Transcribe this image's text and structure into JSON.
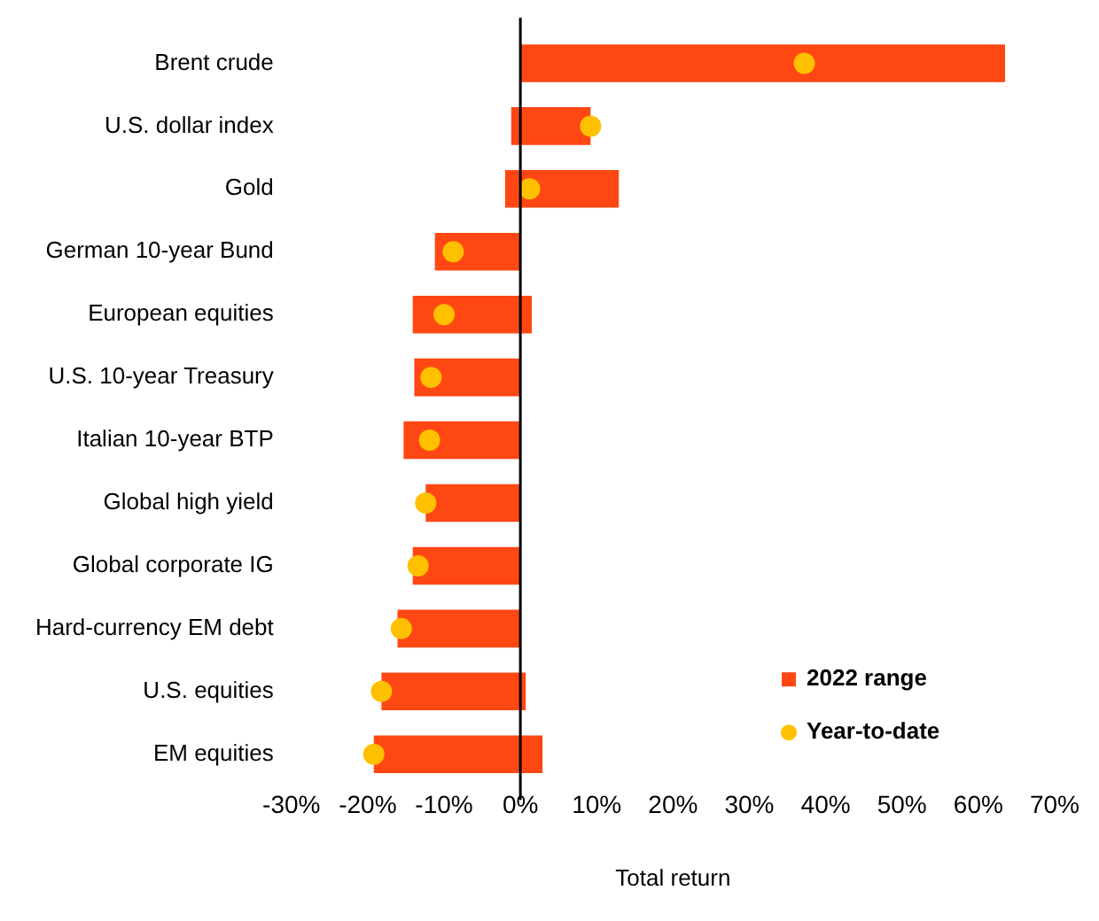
{
  "chart_data": {
    "type": "bar",
    "orientation": "horizontal",
    "xlabel": "Total return",
    "categories": [
      "Brent crude",
      "U.S. dollar index",
      "Gold",
      "German 10-year Bund",
      "European equities",
      "U.S. 10-year Treasury",
      "Italian 10-year BTP",
      "Global high yield",
      "Global corporate IG",
      "Hard-currency EM debt",
      "U.S. equities",
      "EM equities"
    ],
    "series": [
      {
        "name": "2022 range",
        "color": "#ff4713",
        "base": [
          0,
          -1.2,
          -2,
          -11.2,
          -14.1,
          -13.9,
          -15.3,
          -12.4,
          -14.1,
          -16.1,
          -18.2,
          -19.2
        ],
        "values": [
          63.5,
          10.4,
          14.9,
          11.2,
          15.6,
          13.9,
          15.3,
          12.4,
          14.1,
          16.1,
          18.9,
          22.1
        ]
      },
      {
        "name": "Year-to-date",
        "type": "scatter",
        "color": "#ffc000",
        "marker": "circle",
        "x": [
          "Brent crude",
          "U.S. dollar index",
          "Gold",
          "German 10-year Bund",
          "European equities",
          "U.S. 10-year Treasury",
          "Italian 10-year BTP",
          "Global high yield",
          "Global corporate IG",
          "Hard-currency EM debt",
          "U.S. equities",
          "EM equities"
        ],
        "values": [
          37.2,
          9.2,
          1.2,
          -8.8,
          -10,
          -11.7,
          -11.9,
          -12.4,
          -13.4,
          -15.6,
          -18.2,
          -19.2
        ]
      }
    ],
    "ref_lines": [
      {
        "axis": "x",
        "value": 0,
        "color": "#000000"
      }
    ],
    "xlim": [
      -30,
      70
    ],
    "xticks": [
      {
        "value": -30,
        "label": "-30%"
      },
      {
        "value": -20,
        "label": "-20%"
      },
      {
        "value": -10,
        "label": "-10%"
      },
      {
        "value": 0,
        "label": "0%"
      },
      {
        "value": 10,
        "label": "10%"
      },
      {
        "value": 20,
        "label": "20%"
      },
      {
        "value": 30,
        "label": "30%"
      },
      {
        "value": 40,
        "label": "40%"
      },
      {
        "value": 50,
        "label": "50%"
      },
      {
        "value": 60,
        "label": "60%"
      },
      {
        "value": 70,
        "label": "70%"
      }
    ],
    "grid": false,
    "legend": "bottom right"
  }
}
